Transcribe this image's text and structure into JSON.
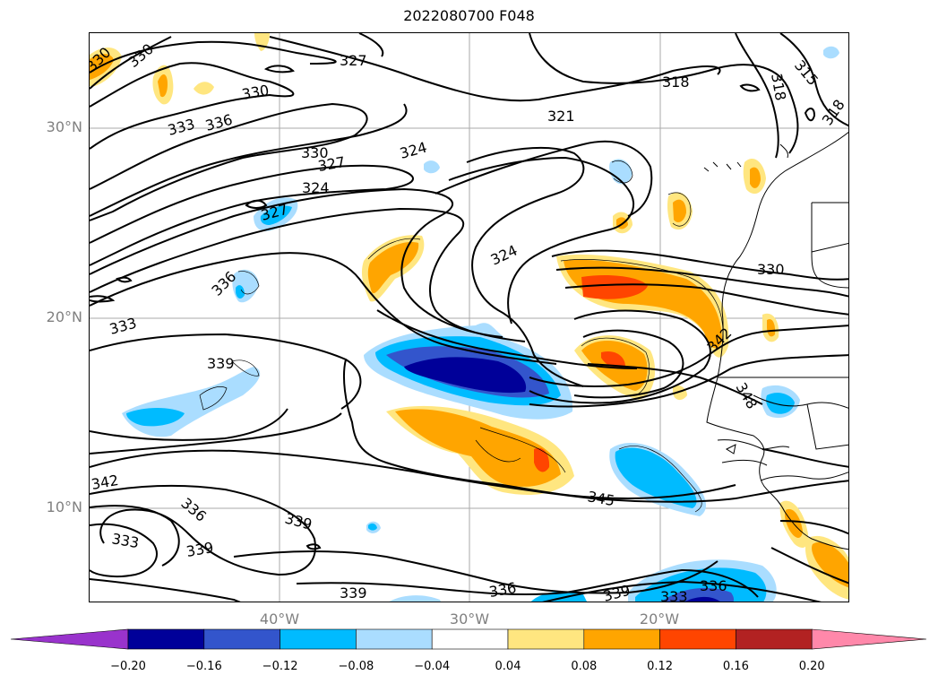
{
  "title": "2022080700 F048",
  "map": {
    "lat_labels": [
      "30°N",
      "20°N",
      "10°N"
    ],
    "lon_labels": [
      "40°W",
      "30°W",
      "20°W"
    ],
    "contour_labels": [
      {
        "t": "330"
      },
      {
        "t": "330"
      },
      {
        "t": "327"
      },
      {
        "t": "330"
      },
      {
        "t": "333"
      },
      {
        "t": "336"
      },
      {
        "t": "330"
      },
      {
        "t": "327"
      },
      {
        "t": "324"
      },
      {
        "t": "324"
      },
      {
        "t": "321"
      },
      {
        "t": "318"
      },
      {
        "t": "315"
      },
      {
        "t": "318"
      },
      {
        "t": "318"
      },
      {
        "t": "327"
      },
      {
        "t": "324"
      },
      {
        "t": "336"
      },
      {
        "t": "333"
      },
      {
        "t": "339"
      },
      {
        "t": "330"
      },
      {
        "t": "342"
      },
      {
        "t": "348"
      },
      {
        "t": "342"
      },
      {
        "t": "336"
      },
      {
        "t": "333"
      },
      {
        "t": "339"
      },
      {
        "t": "339"
      },
      {
        "t": "345"
      },
      {
        "t": "339"
      },
      {
        "t": "336"
      },
      {
        "t": "339"
      },
      {
        "t": "333"
      },
      {
        "t": "336"
      }
    ]
  },
  "colorbar": {
    "colors": [
      "#9933cc",
      "#000099",
      "#3355cc",
      "#00bbff",
      "#aaddff",
      "#ffffff",
      "#ffe680",
      "#ffa500",
      "#ff4500",
      "#b22222",
      "#ff88aa"
    ],
    "tick_labels": [
      "−0.20",
      "−0.16",
      "−0.12",
      "−0.08",
      "−0.04",
      "0.04",
      "0.08",
      "0.12",
      "0.16",
      "0.20"
    ]
  }
}
